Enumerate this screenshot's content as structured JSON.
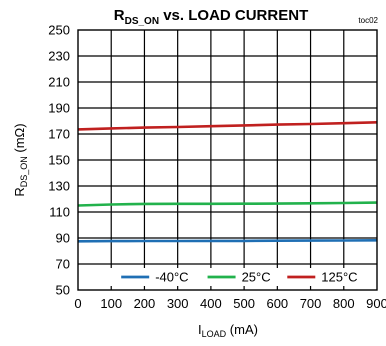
{
  "chart_data": {
    "type": "line",
    "title": {
      "prefix": "R",
      "subscript": "DS_ON",
      "suffix": " vs. LOAD CURRENT"
    },
    "toc_label": "toc02",
    "xlabel": {
      "main": "I",
      "subscript": "LOAD",
      "unit": " (mA)"
    },
    "ylabel": {
      "main": "R",
      "subscript": "DS_ON",
      "unit": " (mΩ)"
    },
    "xlim": [
      0,
      900
    ],
    "ylim": [
      50,
      250
    ],
    "x_ticks": [
      "0",
      "100",
      "200",
      "300",
      "400",
      "500",
      "600",
      "700",
      "800",
      "900"
    ],
    "y_ticks": [
      "250",
      "230",
      "210",
      "190",
      "170",
      "150",
      "130",
      "110",
      "90",
      "70",
      "50"
    ],
    "grid": true,
    "legend_position": "bottom",
    "x": [
      0,
      100,
      200,
      300,
      400,
      500,
      600,
      700,
      800,
      900
    ],
    "series": [
      {
        "name": "-40°C",
        "color": "#1f6fb4",
        "values": [
          87.5,
          87.6,
          87.7,
          87.7,
          87.8,
          87.8,
          87.9,
          88.0,
          88.1,
          88.2
        ]
      },
      {
        "name": "25°C",
        "color": "#22b24c",
        "values": [
          115.0,
          115.8,
          116.2,
          116.3,
          116.3,
          116.4,
          116.5,
          116.7,
          116.9,
          117.2
        ]
      },
      {
        "name": "125°C",
        "color": "#c0201f",
        "values": [
          173.5,
          174.3,
          174.9,
          175.4,
          176.0,
          176.6,
          177.2,
          177.7,
          178.3,
          179.0
        ]
      }
    ]
  }
}
